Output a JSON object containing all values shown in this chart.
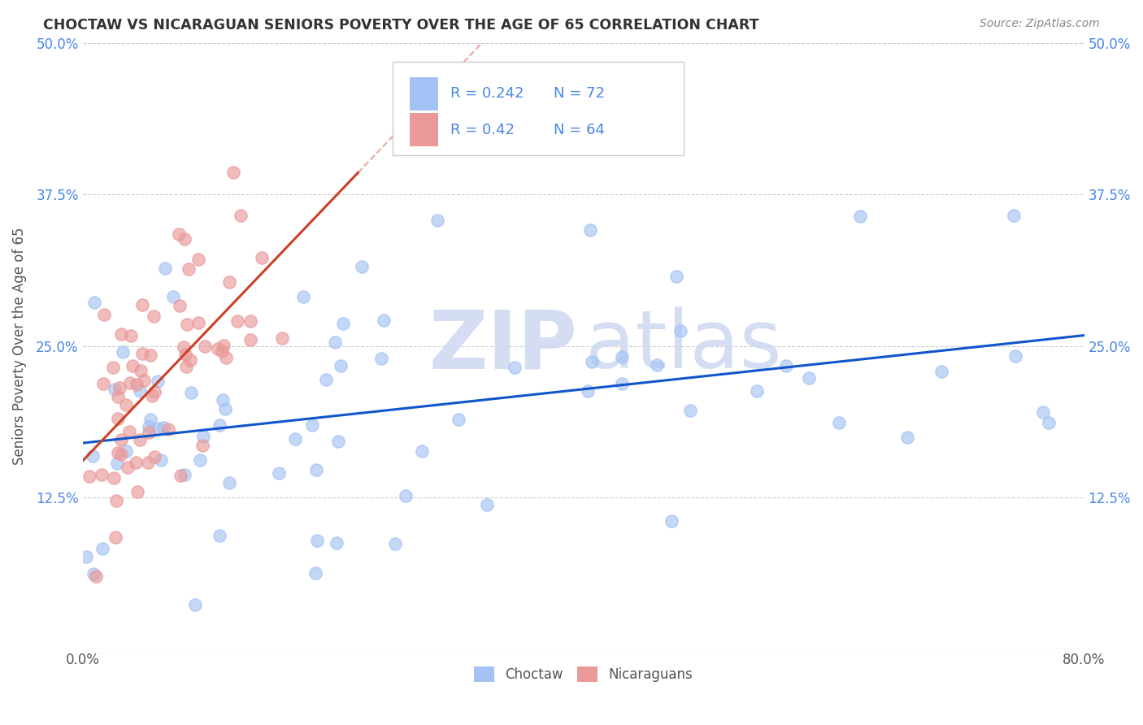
{
  "title": "CHOCTAW VS NICARAGUAN SENIORS POVERTY OVER THE AGE OF 65 CORRELATION CHART",
  "source": "Source: ZipAtlas.com",
  "ylabel": "Seniors Poverty Over the Age of 65",
  "xlim": [
    0,
    0.8
  ],
  "ylim": [
    0,
    0.5
  ],
  "yticks": [
    0.0,
    0.125,
    0.25,
    0.375,
    0.5
  ],
  "yticklabels_left": [
    "",
    "12.5%",
    "25.0%",
    "37.5%",
    "50.0%"
  ],
  "yticklabels_right": [
    "",
    "12.5%",
    "25.0%",
    "37.5%",
    "50.0%"
  ],
  "choctaw_color": "#a4c2f4",
  "nicaraguan_color": "#ea9999",
  "choctaw_line_color": "#1155cc",
  "nicaraguan_line_color": "#cc4125",
  "tick_color": "#4a86e8",
  "R_choctaw": 0.242,
  "N_choctaw": 72,
  "R_nicaraguan": 0.42,
  "N_nicaraguan": 64,
  "background_color": "#ffffff",
  "grid_color": "#cccccc"
}
